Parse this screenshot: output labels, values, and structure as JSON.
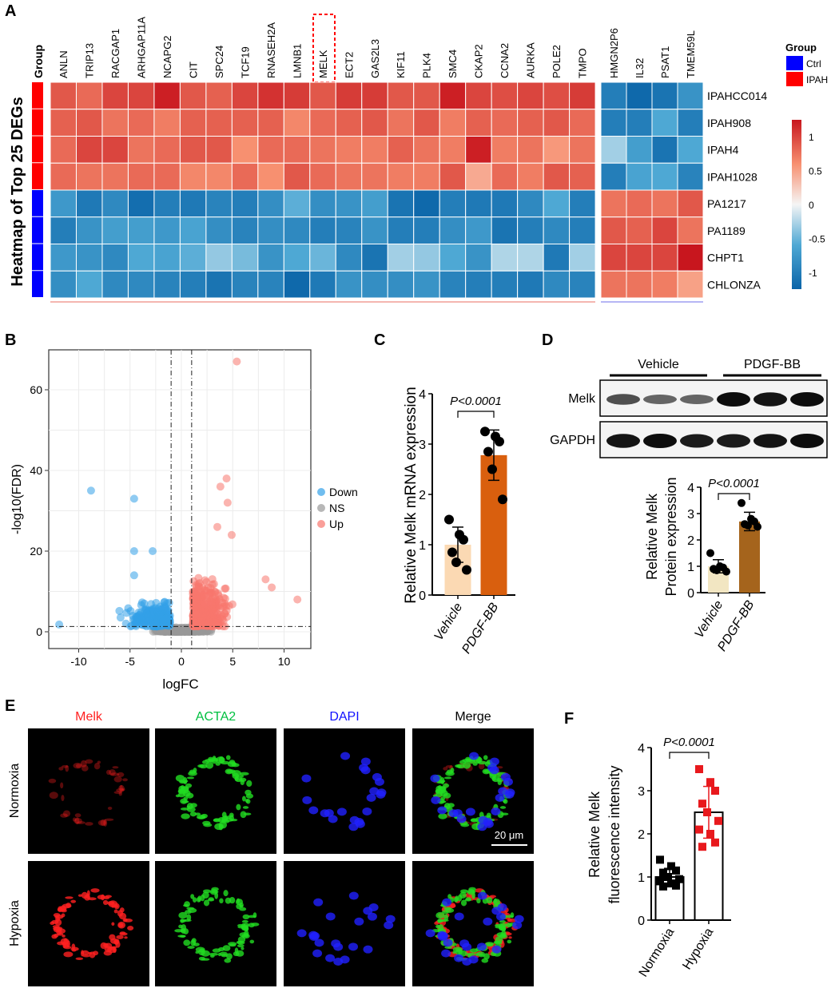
{
  "panel_labels": {
    "a": "A",
    "b": "B",
    "c": "C",
    "d": "D",
    "e": "E",
    "f": "F"
  },
  "colors": {
    "ipah": "#ff0000",
    "ctrl": "#0000ff",
    "up": "#f8766d",
    "down": "#33a1e8",
    "ns": "#999999",
    "c_vehicle": "#fbd9b3",
    "c_pdgf": "#d95f0e",
    "d_vehicle": "#f2e6c2",
    "d_pdgf": "#a5641c",
    "f_hyp": "#e8191d"
  },
  "chart_data": [
    {
      "type": "heatmap",
      "panel": "A",
      "title": "Heatmap of Top 25 DEGs",
      "group_header": "Group",
      "highlighted_gene": "MELK",
      "columns": [
        "ANLN",
        "TRIP13",
        "RACGAP1",
        "ARHGAP11A",
        "NCAPG2",
        "CIT",
        "SPC24",
        "TCF19",
        "RNASEH2A",
        "LMNB1",
        "MELK",
        "ECT2",
        "GAS2L3",
        "KIF11",
        "PLK4",
        "SMC4",
        "CKAP2",
        "CCNA2",
        "AURKA",
        "POLE2",
        "TMPO",
        "HMGN2P6",
        "IL32",
        "PSAT1",
        "TMEM59L"
      ],
      "rows": [
        {
          "name": "IPAHCC014",
          "group": "IPAH"
        },
        {
          "name": "IPAH908",
          "group": "IPAH"
        },
        {
          "name": "IPAH4",
          "group": "IPAH"
        },
        {
          "name": "IPAH1028",
          "group": "IPAH"
        },
        {
          "name": "PA1217",
          "group": "Ctrl"
        },
        {
          "name": "PA1189",
          "group": "Ctrl"
        },
        {
          "name": "CHPT1",
          "group": "Ctrl"
        },
        {
          "name": "CHLONZA",
          "group": "Ctrl"
        }
      ],
      "values": [
        [
          0.9,
          0.8,
          1.0,
          1.0,
          1.2,
          0.9,
          0.85,
          1.0,
          1.1,
          1.05,
          0.9,
          1.05,
          1.05,
          0.9,
          0.9,
          1.2,
          1.0,
          0.95,
          1.0,
          0.95,
          1.05,
          -1.0,
          -1.2,
          -1.1,
          -0.8
        ],
        [
          0.85,
          0.9,
          0.75,
          0.8,
          0.7,
          0.85,
          0.85,
          0.85,
          0.85,
          0.65,
          0.8,
          0.85,
          0.9,
          0.75,
          0.9,
          0.7,
          0.85,
          0.8,
          0.85,
          0.9,
          0.8,
          -1.0,
          -1.0,
          -0.6,
          -1.0
        ],
        [
          0.8,
          1.0,
          1.0,
          0.75,
          0.8,
          0.9,
          0.9,
          0.6,
          0.8,
          0.8,
          0.75,
          0.7,
          0.7,
          0.85,
          0.75,
          0.7,
          1.2,
          0.7,
          0.75,
          0.55,
          0.75,
          -0.3,
          -0.7,
          -1.1,
          -0.6
        ],
        [
          0.8,
          0.75,
          0.75,
          0.8,
          0.8,
          0.65,
          0.65,
          0.8,
          0.6,
          0.9,
          0.8,
          0.75,
          0.75,
          0.7,
          0.7,
          0.9,
          0.45,
          0.8,
          0.7,
          0.9,
          0.85,
          -1.0,
          -0.65,
          -0.6,
          -0.95
        ],
        [
          -0.75,
          -1.05,
          -0.9,
          -1.15,
          -1.0,
          -1.05,
          -0.95,
          -1.0,
          -0.85,
          -0.55,
          -0.85,
          -0.8,
          -0.7,
          -1.1,
          -1.2,
          -1.0,
          -1.05,
          -1.05,
          -0.9,
          -0.6,
          -1.0,
          0.75,
          0.8,
          0.75,
          0.9
        ],
        [
          -1.0,
          -0.8,
          -0.7,
          -0.7,
          -0.75,
          -0.65,
          -0.85,
          -0.95,
          -0.85,
          -0.9,
          -1.0,
          -0.95,
          -0.8,
          -1.0,
          -1.0,
          -0.85,
          -0.75,
          -1.1,
          -1.0,
          -0.9,
          -1.0,
          0.9,
          0.85,
          1.0,
          0.75
        ],
        [
          -0.75,
          -0.8,
          -0.9,
          -0.6,
          -0.65,
          -0.55,
          -0.35,
          -0.45,
          -0.8,
          -0.6,
          -0.5,
          -0.9,
          -1.1,
          -0.3,
          -0.35,
          -0.6,
          -0.8,
          -0.25,
          -0.25,
          -1.05,
          -0.3,
          1.0,
          1.0,
          1.0,
          1.25
        ],
        [
          -0.85,
          -0.6,
          -0.9,
          -0.9,
          -0.95,
          -1.0,
          -1.1,
          -0.95,
          -0.95,
          -1.2,
          -1.05,
          -0.8,
          -0.85,
          -0.85,
          -0.8,
          -0.95,
          -1.0,
          -1.0,
          -1.05,
          -0.9,
          -0.95,
          0.75,
          0.75,
          0.7,
          0.5
        ]
      ],
      "legend": {
        "title": "Group",
        "items": [
          "Ctrl",
          "IPAH"
        ]
      },
      "colorbar": {
        "range": [
          -1.25,
          1.25
        ],
        "ticks": [
          "1",
          "0.5",
          "0",
          "-0.5",
          "-1"
        ],
        "tick_values": [
          1,
          0.5,
          0,
          -0.5,
          -1
        ]
      }
    },
    {
      "type": "scatter",
      "panel": "B",
      "xlabel": "logFC",
      "ylabel": "-log10(FDR)",
      "xlim": [
        -12.6,
        12.9
      ],
      "ylim": [
        -4,
        70
      ],
      "xticks": [
        "-10",
        "-5",
        "0",
        "5",
        "10"
      ],
      "xtick_values": [
        -10,
        -5,
        0,
        5,
        10
      ],
      "yticks": [
        "0",
        "20",
        "40",
        "60"
      ],
      "ytick_values": [
        0,
        20,
        40,
        60
      ],
      "thresholds": {
        "logFC": [
          -1,
          1
        ],
        "neg_log10_fdr": 1.3
      },
      "legend": [
        "Down",
        "NS",
        "Up"
      ],
      "highlighted_points": [
        {
          "x": 5.4,
          "y": 67,
          "g": "Up"
        },
        {
          "x": -8.8,
          "y": 35,
          "g": "Down"
        },
        {
          "x": -4.6,
          "y": 33,
          "g": "Down"
        },
        {
          "x": 4.4,
          "y": 38,
          "g": "Up"
        },
        {
          "x": 3.8,
          "y": 36,
          "g": "Up"
        },
        {
          "x": 4.5,
          "y": 32,
          "g": "Up"
        },
        {
          "x": -4.6,
          "y": 20,
          "g": "Down"
        },
        {
          "x": -2.8,
          "y": 20,
          "g": "Down"
        },
        {
          "x": 11.3,
          "y": 8,
          "g": "Up"
        },
        {
          "x": 8.2,
          "y": 13,
          "g": "Up"
        },
        {
          "x": 8.8,
          "y": 11,
          "g": "Up"
        },
        {
          "x": -11.9,
          "y": 1.8,
          "g": "Down"
        },
        {
          "x": 3.5,
          "y": 26,
          "g": "Up"
        },
        {
          "x": 4.9,
          "y": 24,
          "g": "Up"
        },
        {
          "x": -4.6,
          "y": 14,
          "g": "Down"
        }
      ]
    },
    {
      "type": "bar",
      "panel": "C",
      "ylabel": "Relative Melk mRNA expression",
      "ylim": [
        0,
        4
      ],
      "yticks": [
        "0",
        "1",
        "2",
        "3",
        "4"
      ],
      "categories": [
        "Vehicle",
        "PDGF-BB"
      ],
      "means": [
        1.0,
        2.78
      ],
      "sd": [
        0.35,
        0.5
      ],
      "points": [
        [
          1.5,
          1.2,
          1.1,
          0.85,
          0.65,
          0.5
        ],
        [
          3.25,
          3.15,
          3.05,
          2.85,
          2.5,
          1.9
        ]
      ],
      "pvalue": "P<0.0001"
    },
    {
      "type": "bar",
      "panel": "D",
      "ylabel_lines": [
        "Relative Melk",
        "Protein expression"
      ],
      "ylim": [
        0,
        4
      ],
      "yticks": [
        "0",
        "1",
        "2",
        "3",
        "4"
      ],
      "categories": [
        "Vehicle",
        "PDGF-BB"
      ],
      "means": [
        1.0,
        2.7
      ],
      "sd": [
        0.25,
        0.35
      ],
      "points": [
        [
          1.5,
          1.0,
          0.95,
          0.9,
          0.85,
          0.8
        ],
        [
          3.4,
          2.8,
          2.7,
          2.6,
          2.55,
          2.5
        ]
      ],
      "pvalue": "P<0.0001",
      "blot": {
        "groups": [
          "Vehicle",
          "PDGF-BB"
        ],
        "rows": [
          "Melk",
          "GAPDH"
        ],
        "band_intensity": {
          "Melk": [
            0.55,
            0.4,
            0.4,
            1.0,
            0.95,
            1.0
          ],
          "GAPDH": [
            0.95,
            1.0,
            0.9,
            0.9,
            0.95,
            1.0
          ]
        }
      }
    },
    {
      "type": "bar",
      "panel": "F",
      "ylabel_lines": [
        "Relative Melk",
        "fluorescence intensity"
      ],
      "ylim": [
        0,
        4
      ],
      "yticks": [
        "0",
        "1",
        "2",
        "3",
        "4"
      ],
      "categories": [
        "Normoxia",
        "Hypoxia"
      ],
      "means": [
        1.0,
        2.5
      ],
      "sd": [
        0.2,
        0.6
      ],
      "points": [
        [
          1.4,
          1.25,
          1.15,
          1.1,
          1.0,
          0.95,
          0.9,
          0.85,
          0.8,
          0.78
        ],
        [
          3.5,
          3.2,
          3.0,
          2.7,
          2.5,
          2.3,
          2.1,
          2.0,
          1.8,
          1.7
        ]
      ],
      "pvalue": "P<0.0001"
    }
  ],
  "panel_e": {
    "channels": [
      "Melk",
      "ACTA2",
      "DAPI",
      "Merge"
    ],
    "channel_colors": [
      "#ff2020",
      "#00c040",
      "#1010ff",
      "#000000"
    ],
    "conditions": [
      "Normoxia",
      "Hypoxia"
    ],
    "scale_bar": "20 μm"
  }
}
